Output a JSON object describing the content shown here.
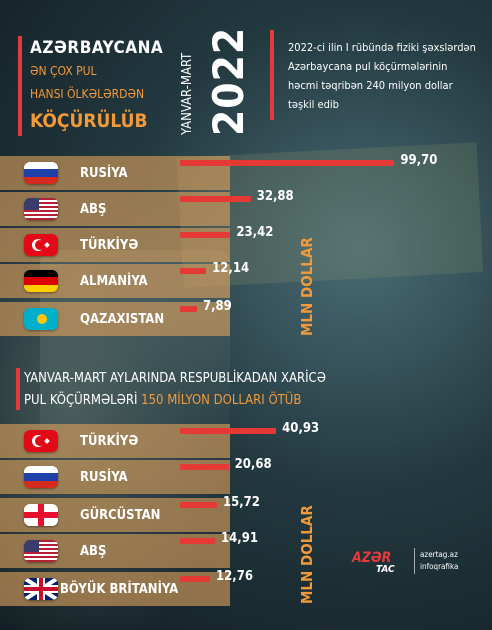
{
  "header": {
    "title": "AZƏRBAYCANA",
    "subtitle_line1": "ƏN ÇOX PUL",
    "subtitle_line2": "HANSI ÖLKƏLƏRDƏN",
    "subtitle_line3": "KÖÇÜRÜLÜB",
    "period": "YANVAR-MART",
    "year": "2022",
    "description": "2022-ci ilin I rübündə fiziki şəxslərdən Azərbaycana pul köçürmələrinin həcmi təqribən 240 milyon dollar təşkil edib"
  },
  "colors": {
    "accent": "#f29a3a",
    "bar": "#e53935",
    "row": "#dba05c"
  },
  "section2": {
    "title_line1": "YANVAR-MART AYLARINDA RESPUBLİKADAN XARİCƏ",
    "title_line2_a": "PUL KÖÇÜRMƏLƏRİ ",
    "title_line2_b": "150 MİLYON DOLLARI ÖTÜB"
  },
  "source": {
    "logo_top": "AZƏR",
    "logo_bottom": "TAC",
    "line1": "azertag.az",
    "line2": "infoqrafika"
  },
  "chart_data": [
    {
      "type": "bar",
      "title": "AZƏRBAYCANA ƏN ÇOX PUL HANSI ÖLKƏLƏRDƏN KÖÇÜRÜLÜB",
      "unit_label": "MLN DOLLAR",
      "categories": [
        "RUSİYA",
        "ABŞ",
        "TÜRKİYƏ",
        "ALMANİYA",
        "QAZAXISTAN"
      ],
      "values": [
        99.7,
        32.88,
        23.42,
        12.14,
        7.89
      ],
      "value_labels": [
        "99,70",
        "32,88",
        "23,42",
        "12,14",
        "7,89"
      ],
      "flag_icons": [
        "russia-flag-icon",
        "usa-flag-icon",
        "turkey-flag-icon",
        "germany-flag-icon",
        "kazakhstan-flag-icon"
      ]
    },
    {
      "type": "bar",
      "title": "YANVAR-MART AYLARINDA RESPUBLİKADAN XARİCƏ PUL KÖÇÜRMƏLƏRİ 150 MİLYON DOLLARI ÖTÜB",
      "unit_label": "MLN DOLLAR",
      "categories": [
        "TÜRKİYƏ",
        "RUSİYA",
        "GÜRCÜSTAN",
        "ABŞ",
        "BÖYÜK BRİTANİYA"
      ],
      "values": [
        40.93,
        20.68,
        15.72,
        14.91,
        12.76
      ],
      "value_labels": [
        "40,93",
        "20,68",
        "15,72",
        "14,91",
        "12,76"
      ],
      "flag_icons": [
        "turkey-flag-icon",
        "russia-flag-icon",
        "georgia-flag-icon",
        "usa-flag-icon",
        "uk-flag-icon"
      ]
    }
  ]
}
